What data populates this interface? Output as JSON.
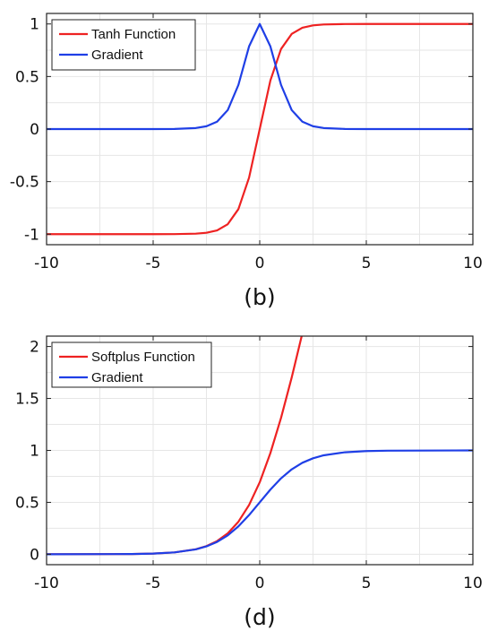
{
  "chart_data": [
    {
      "type": "line",
      "caption": "(b)",
      "xlim": [
        -10,
        10
      ],
      "ylim": [
        -1.1,
        1.1
      ],
      "xticks": [
        -10,
        -5,
        0,
        5,
        10
      ],
      "yticks": [
        -1,
        -0.5,
        0,
        0.5,
        1
      ],
      "xtick_labels": [
        "-10",
        "-5",
        "0",
        "5",
        "10"
      ],
      "ytick_labels": [
        "-1",
        "-0.5",
        "0",
        "0.5",
        "1"
      ],
      "grid": true,
      "legend_position": "top-left",
      "series": [
        {
          "name": "Tanh Function",
          "color": "#ee2222",
          "x": [
            -10,
            -5,
            -4,
            -3,
            -2.5,
            -2,
            -1.5,
            -1,
            -0.5,
            0,
            0.5,
            1,
            1.5,
            2,
            2.5,
            3,
            4,
            5,
            10
          ],
          "y": [
            -1.0,
            -0.9999,
            -0.9993,
            -0.9951,
            -0.9866,
            -0.964,
            -0.9051,
            -0.7616,
            -0.4621,
            0.0,
            0.4621,
            0.7616,
            0.9051,
            0.964,
            0.9866,
            0.9951,
            0.9993,
            0.9999,
            1.0
          ]
        },
        {
          "name": "Gradient",
          "color": "#1f3fe6",
          "x": [
            -10,
            -5,
            -4,
            -3,
            -2.5,
            -2,
            -1.5,
            -1,
            -0.5,
            0,
            0.5,
            1,
            1.5,
            2,
            2.5,
            3,
            4,
            5,
            10
          ],
          "y": [
            0.0,
            0.0002,
            0.0013,
            0.0099,
            0.0266,
            0.0707,
            0.1807,
            0.42,
            0.7864,
            1.0,
            0.7864,
            0.42,
            0.1807,
            0.0707,
            0.0266,
            0.0099,
            0.0013,
            0.0002,
            0.0
          ]
        }
      ]
    },
    {
      "type": "line",
      "caption": "(d)",
      "xlim": [
        -10,
        10
      ],
      "ylim": [
        -0.1,
        2.1
      ],
      "xticks": [
        -10,
        -5,
        0,
        5,
        10
      ],
      "yticks": [
        0,
        0.5,
        1,
        1.5,
        2
      ],
      "xtick_labels": [
        "-10",
        "-5",
        "0",
        "5",
        "10"
      ],
      "ytick_labels": [
        "0",
        "0.5",
        "1",
        "1.5",
        "2"
      ],
      "grid": true,
      "legend_position": "top-left",
      "series": [
        {
          "name": "Softplus  Function",
          "color": "#ee2222",
          "x": [
            -10,
            -6,
            -5,
            -4,
            -3,
            -2.5,
            -2,
            -1.5,
            -1,
            -0.5,
            0,
            0.5,
            1,
            1.5,
            2,
            2.1
          ],
          "y": [
            0.0,
            0.0025,
            0.0067,
            0.0181,
            0.0486,
            0.0789,
            0.1269,
            0.2014,
            0.3133,
            0.4741,
            0.6931,
            0.9741,
            1.3133,
            1.7014,
            2.1269,
            2.2
          ]
        },
        {
          "name": "Gradient",
          "color": "#1f3fe6",
          "x": [
            -10,
            -6,
            -5,
            -4,
            -3,
            -2.5,
            -2,
            -1.5,
            -1,
            -0.5,
            0,
            0.5,
            1,
            1.5,
            2,
            2.5,
            3,
            4,
            5,
            6,
            10
          ],
          "y": [
            0.0,
            0.0025,
            0.0067,
            0.018,
            0.0474,
            0.0759,
            0.1192,
            0.1824,
            0.2689,
            0.3775,
            0.5,
            0.6225,
            0.7311,
            0.8176,
            0.8808,
            0.9241,
            0.9526,
            0.982,
            0.9933,
            0.9975,
            1.0
          ]
        }
      ]
    }
  ]
}
